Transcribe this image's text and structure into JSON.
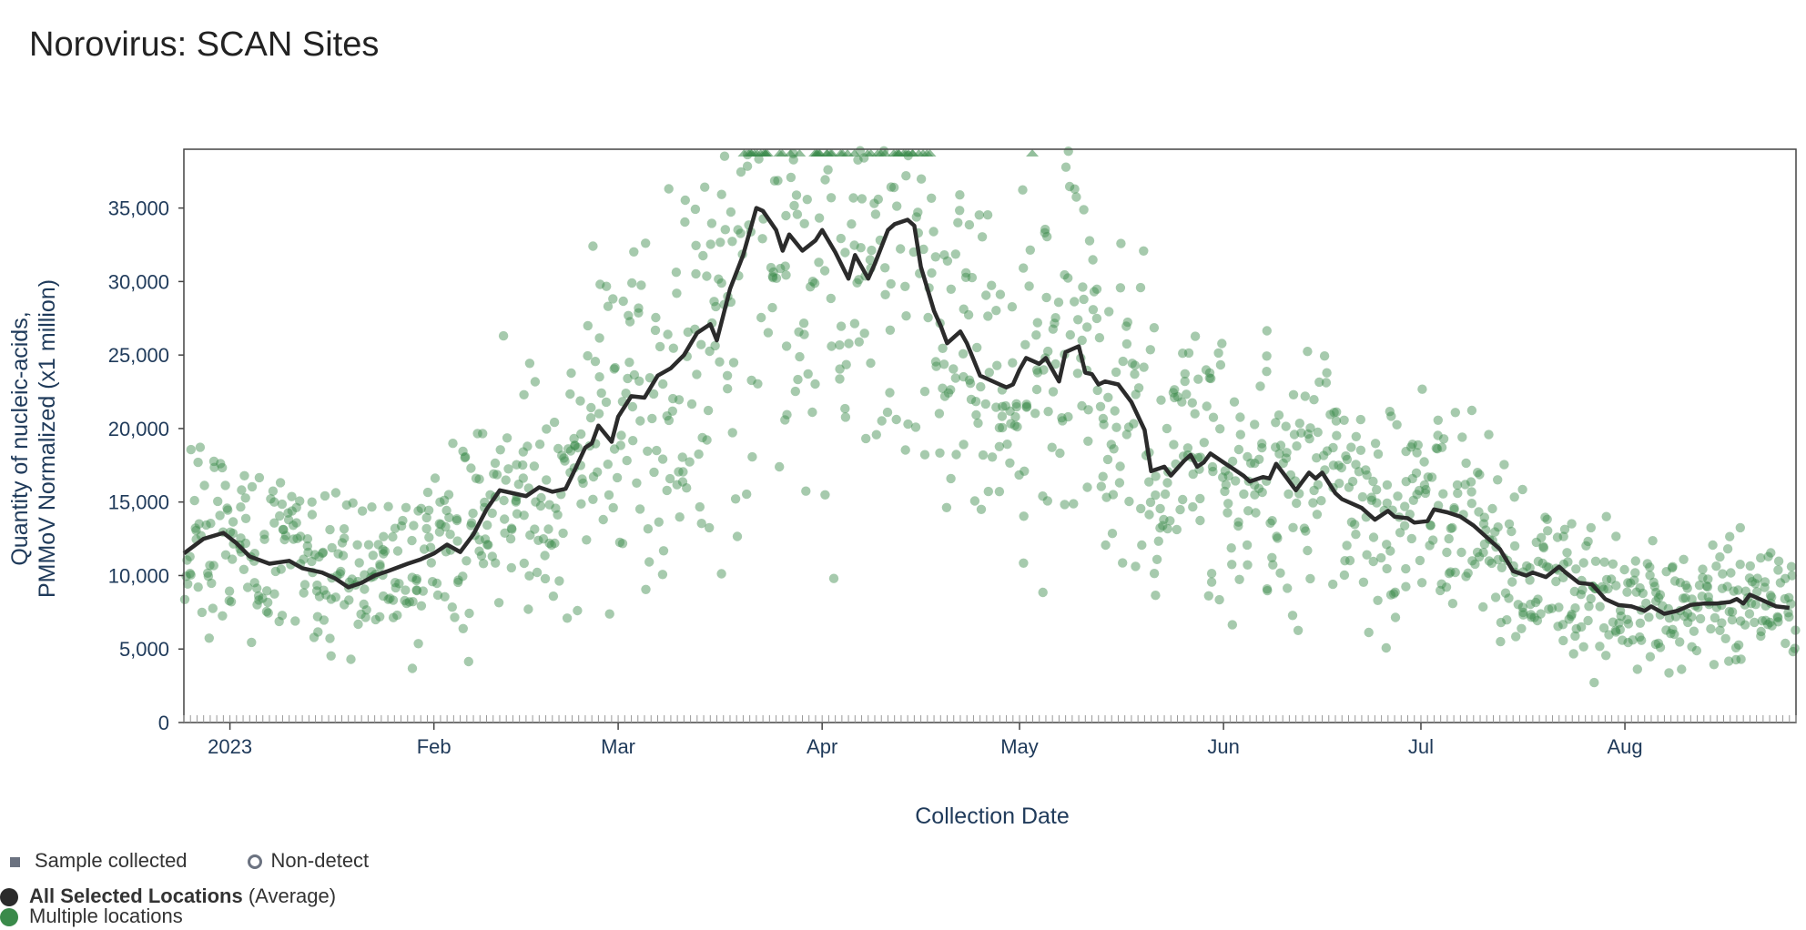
{
  "title": "Norovirus: SCAN Sites",
  "chart_data": {
    "type": "scatter",
    "title": "Norovirus: SCAN Sites",
    "xlabel": "Collection Date",
    "ylabel_line1": "Quantity of nucleic-acids,",
    "ylabel_line2": "PMMoV Normalized (x1 million)",
    "xlim": [
      "2022-12-25",
      "2023-08-27"
    ],
    "ylim": [
      0,
      39000
    ],
    "yticks": [
      0,
      5000,
      10000,
      15000,
      20000,
      25000,
      30000,
      35000
    ],
    "ytick_labels": [
      "0",
      "5,000",
      "10,000",
      "15,000",
      "20,000",
      "25,000",
      "30,000",
      "35,000"
    ],
    "xticks": [
      {
        "date": "2023-01-01",
        "label": "2023"
      },
      {
        "date": "2023-02-01",
        "label": "Feb"
      },
      {
        "date": "2023-03-01",
        "label": "Mar"
      },
      {
        "date": "2023-04-01",
        "label": "Apr"
      },
      {
        "date": "2023-05-01",
        "label": "May"
      },
      {
        "date": "2023-06-01",
        "label": "Jun"
      },
      {
        "date": "2023-07-01",
        "label": "Jul"
      },
      {
        "date": "2023-08-01",
        "label": "Aug"
      }
    ],
    "colors": {
      "points": "#3a8a4a",
      "line": "#2b2b2b",
      "axis": "#444444",
      "text": "#1f3a5a"
    },
    "series": [
      {
        "name": "All Selected Locations (Average)",
        "kind": "line",
        "points": [
          [
            "2022-12-25",
            11500
          ],
          [
            "2022-12-28",
            12500
          ],
          [
            "2022-12-31",
            12900
          ],
          [
            "2023-01-02",
            12200
          ],
          [
            "2023-01-04",
            11300
          ],
          [
            "2023-01-07",
            10800
          ],
          [
            "2023-01-10",
            11000
          ],
          [
            "2023-01-12",
            10500
          ],
          [
            "2023-01-15",
            10200
          ],
          [
            "2023-01-17",
            9800
          ],
          [
            "2023-01-19",
            9200
          ],
          [
            "2023-01-21",
            9500
          ],
          [
            "2023-01-23",
            10000
          ],
          [
            "2023-01-25",
            10300
          ],
          [
            "2023-01-28",
            10800
          ],
          [
            "2023-01-30",
            11100
          ],
          [
            "2023-02-01",
            11500
          ],
          [
            "2023-02-03",
            12100
          ],
          [
            "2023-02-05",
            11600
          ],
          [
            "2023-02-07",
            12800
          ],
          [
            "2023-02-09",
            14500
          ],
          [
            "2023-02-11",
            15800
          ],
          [
            "2023-02-13",
            15600
          ],
          [
            "2023-02-15",
            15400
          ],
          [
            "2023-02-17",
            16000
          ],
          [
            "2023-02-19",
            15700
          ],
          [
            "2023-02-21",
            15900
          ],
          [
            "2023-02-22",
            16800
          ],
          [
            "2023-02-24",
            18700
          ],
          [
            "2023-02-25",
            19000
          ],
          [
            "2023-02-26",
            20200
          ],
          [
            "2023-02-28",
            19100
          ],
          [
            "2023-03-01",
            20800
          ],
          [
            "2023-03-03",
            22200
          ],
          [
            "2023-03-05",
            22100
          ],
          [
            "2023-03-07",
            23600
          ],
          [
            "2023-03-09",
            24100
          ],
          [
            "2023-03-11",
            25000
          ],
          [
            "2023-03-13",
            26500
          ],
          [
            "2023-03-15",
            27100
          ],
          [
            "2023-03-16",
            26000
          ],
          [
            "2023-03-18",
            29500
          ],
          [
            "2023-03-20",
            31800
          ],
          [
            "2023-03-22",
            35000
          ],
          [
            "2023-03-23",
            34800
          ],
          [
            "2023-03-25",
            33500
          ],
          [
            "2023-03-26",
            32100
          ],
          [
            "2023-03-27",
            33200
          ],
          [
            "2023-03-29",
            32100
          ],
          [
            "2023-03-31",
            32800
          ],
          [
            "2023-04-01",
            33500
          ],
          [
            "2023-04-03",
            32000
          ],
          [
            "2023-04-05",
            30200
          ],
          [
            "2023-04-06",
            31800
          ],
          [
            "2023-04-08",
            30200
          ],
          [
            "2023-04-09",
            31200
          ],
          [
            "2023-04-11",
            33500
          ],
          [
            "2023-04-12",
            33900
          ],
          [
            "2023-04-14",
            34200
          ],
          [
            "2023-04-15",
            33800
          ],
          [
            "2023-04-16",
            31000
          ],
          [
            "2023-04-18",
            28000
          ],
          [
            "2023-04-19",
            27000
          ],
          [
            "2023-04-20",
            25800
          ],
          [
            "2023-04-22",
            26600
          ],
          [
            "2023-04-23",
            25800
          ],
          [
            "2023-04-25",
            23600
          ],
          [
            "2023-04-26",
            23400
          ],
          [
            "2023-04-28",
            23000
          ],
          [
            "2023-04-29",
            22800
          ],
          [
            "2023-04-30",
            23000
          ],
          [
            "2023-05-01",
            24000
          ],
          [
            "2023-05-02",
            24800
          ],
          [
            "2023-05-04",
            24400
          ],
          [
            "2023-05-05",
            24800
          ],
          [
            "2023-05-07",
            23200
          ],
          [
            "2023-05-08",
            25200
          ],
          [
            "2023-05-10",
            25600
          ],
          [
            "2023-05-11",
            23800
          ],
          [
            "2023-05-12",
            23700
          ],
          [
            "2023-05-13",
            23000
          ],
          [
            "2023-05-14",
            23200
          ],
          [
            "2023-05-16",
            23000
          ],
          [
            "2023-05-18",
            21800
          ],
          [
            "2023-05-20",
            19900
          ],
          [
            "2023-05-21",
            17100
          ],
          [
            "2023-05-23",
            17400
          ],
          [
            "2023-05-24",
            16800
          ],
          [
            "2023-05-26",
            17800
          ],
          [
            "2023-05-27",
            18200
          ],
          [
            "2023-05-28",
            17400
          ],
          [
            "2023-05-29",
            17700
          ],
          [
            "2023-05-30",
            18300
          ],
          [
            "2023-06-01",
            17700
          ],
          [
            "2023-06-02",
            17400
          ],
          [
            "2023-06-04",
            16800
          ],
          [
            "2023-06-05",
            16400
          ],
          [
            "2023-06-07",
            16700
          ],
          [
            "2023-06-08",
            16600
          ],
          [
            "2023-06-09",
            17600
          ],
          [
            "2023-06-10",
            17000
          ],
          [
            "2023-06-12",
            15800
          ],
          [
            "2023-06-14",
            17000
          ],
          [
            "2023-06-15",
            16600
          ],
          [
            "2023-06-16",
            17000
          ],
          [
            "2023-06-18",
            15600
          ],
          [
            "2023-06-19",
            15200
          ],
          [
            "2023-06-21",
            14800
          ],
          [
            "2023-06-22",
            14600
          ],
          [
            "2023-06-24",
            13800
          ],
          [
            "2023-06-26",
            14400
          ],
          [
            "2023-06-27",
            14000
          ],
          [
            "2023-06-29",
            13900
          ],
          [
            "2023-06-30",
            13600
          ],
          [
            "2023-07-02",
            13700
          ],
          [
            "2023-07-03",
            14500
          ],
          [
            "2023-07-05",
            14300
          ],
          [
            "2023-07-07",
            14000
          ],
          [
            "2023-07-09",
            13400
          ],
          [
            "2023-07-11",
            12600
          ],
          [
            "2023-07-13",
            11800
          ],
          [
            "2023-07-15",
            10300
          ],
          [
            "2023-07-17",
            10000
          ],
          [
            "2023-07-18",
            10200
          ],
          [
            "2023-07-20",
            9900
          ],
          [
            "2023-07-22",
            10600
          ],
          [
            "2023-07-23",
            10200
          ],
          [
            "2023-07-25",
            9500
          ],
          [
            "2023-07-27",
            9400
          ],
          [
            "2023-07-29",
            8400
          ],
          [
            "2023-07-31",
            8000
          ],
          [
            "2023-08-02",
            7900
          ],
          [
            "2023-08-04",
            7600
          ],
          [
            "2023-08-05",
            7900
          ],
          [
            "2023-08-07",
            7400
          ],
          [
            "2023-08-09",
            7600
          ],
          [
            "2023-08-11",
            8000
          ],
          [
            "2023-08-13",
            8100
          ],
          [
            "2023-08-15",
            8100
          ],
          [
            "2023-08-17",
            8200
          ],
          [
            "2023-08-18",
            8400
          ],
          [
            "2023-08-19",
            8100
          ],
          [
            "2023-08-20",
            8700
          ],
          [
            "2023-08-22",
            8300
          ],
          [
            "2023-08-24",
            7900
          ],
          [
            "2023-08-26",
            7800
          ]
        ]
      },
      {
        "name": "Multiple locations",
        "kind": "scatter",
        "note": "Individual sample points (approx. 1,600 samples, estimated trend from figure); triangles at top mark samples exceeding the axis maximum.",
        "points_per_day": 6
      }
    ]
  },
  "legend": {
    "sample_collected": "Sample collected",
    "non_detect": "Non-detect",
    "average_bold": "All Selected Locations",
    "average_suffix": "(Average)",
    "multiple": "Multiple locations"
  }
}
